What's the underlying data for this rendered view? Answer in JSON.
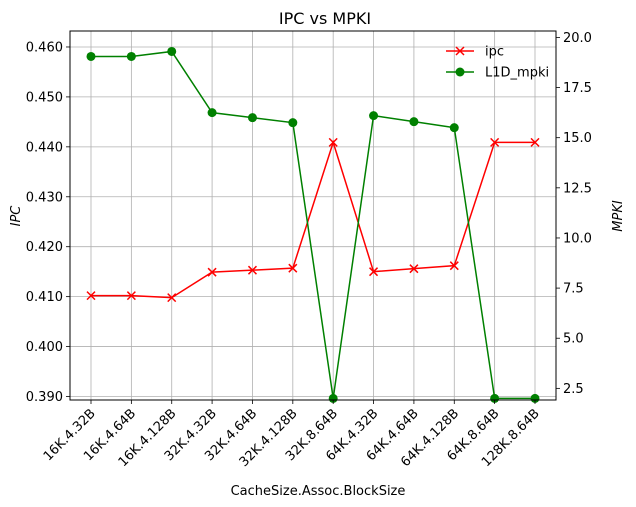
{
  "chart_data": {
    "type": "line",
    "title": "IPC vs MPKI",
    "xlabel": "CacheSize.Assoc.BlockSize",
    "ylabel_left": "IPC",
    "ylabel_right": "MPKI",
    "categories": [
      "16K.4.32B",
      "16K.4.64B",
      "16K.4.128B",
      "32K.4.32B",
      "32K.4.64B",
      "32K.4.128B",
      "32K.8.64B",
      "64K.4.32B",
      "64K.4.64B",
      "64K.4.128B",
      "64K.8.64B",
      "128K.8.64B"
    ],
    "y_left_range": [
      0.3893,
      0.4632
    ],
    "y_left_ticks": [
      "0.390",
      "0.400",
      "0.410",
      "0.420",
      "0.430",
      "0.440",
      "0.450",
      "0.460"
    ],
    "y_right_range": [
      1.92,
      20.32
    ],
    "y_right_ticks": [
      "2.5",
      "5.0",
      "7.5",
      "10.0",
      "12.5",
      "15.0",
      "17.5",
      "20.0"
    ],
    "grid": true,
    "legend_position": "top-right",
    "series": [
      {
        "name": "ipc",
        "axis": "left",
        "color": "#ff0000",
        "marker": "x",
        "values": [
          0.4102,
          0.4102,
          0.4098,
          0.4149,
          0.4153,
          0.4157,
          0.4409,
          0.415,
          0.4156,
          0.4162,
          0.4409,
          0.4409
        ]
      },
      {
        "name": "L1D_mpki",
        "axis": "right",
        "color": "#008000",
        "marker": "circle",
        "values": [
          19.05,
          19.05,
          19.3,
          16.25,
          16.0,
          15.75,
          2.0,
          16.1,
          15.8,
          15.5,
          2.0,
          2.0
        ]
      }
    ]
  }
}
